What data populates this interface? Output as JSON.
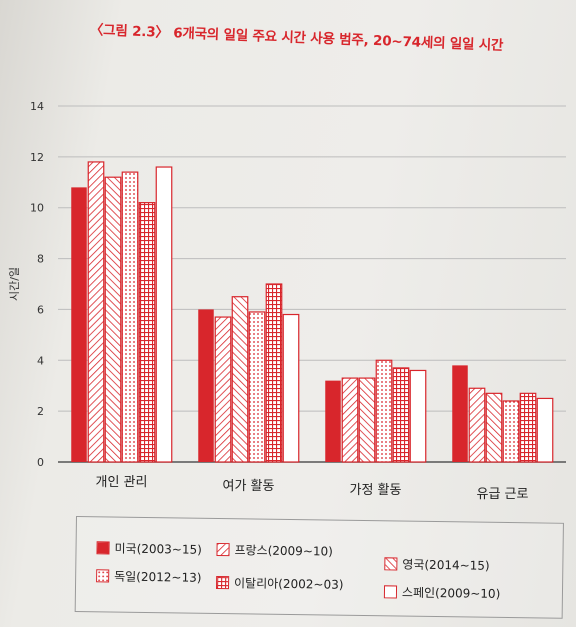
{
  "title": "〈그림 2.3〉 6개국의 일일 주요 시간 사용 범주, 20~74세의 일일 시간",
  "chart_data": {
    "type": "bar",
    "ylabel": "시간/일",
    "ylim": [
      0,
      14
    ],
    "yticks": [
      0,
      2,
      4,
      6,
      8,
      10,
      12,
      14
    ],
    "grid": true,
    "legend_position": "bottom",
    "categories": [
      "개인 관리",
      "여가 활동",
      "가정 활동",
      "유급 근로"
    ],
    "series": [
      {
        "name": "미국(2003~15)",
        "pattern": "solid",
        "values": [
          10.8,
          6.0,
          3.2,
          3.8
        ]
      },
      {
        "name": "프랑스(2009~10)",
        "pattern": "diag-forward",
        "values": [
          11.8,
          5.7,
          3.3,
          2.9
        ]
      },
      {
        "name": "영국(2014~15)",
        "pattern": "diag-back",
        "values": [
          11.2,
          6.5,
          3.3,
          2.7
        ]
      },
      {
        "name": "독일(2012~13)",
        "pattern": "dots",
        "values": [
          11.4,
          5.9,
          4.0,
          2.4
        ]
      },
      {
        "name": "이탈리아(2002~03)",
        "pattern": "grid",
        "values": [
          10.2,
          7.0,
          3.7,
          2.7
        ]
      },
      {
        "name": "스페인(2009~10)",
        "pattern": "empty",
        "values": [
          11.6,
          5.8,
          3.6,
          2.5
        ]
      }
    ],
    "colors": {
      "accent": "#d8262c",
      "axis": "#555555",
      "grid": "#bdbdbd"
    }
  }
}
